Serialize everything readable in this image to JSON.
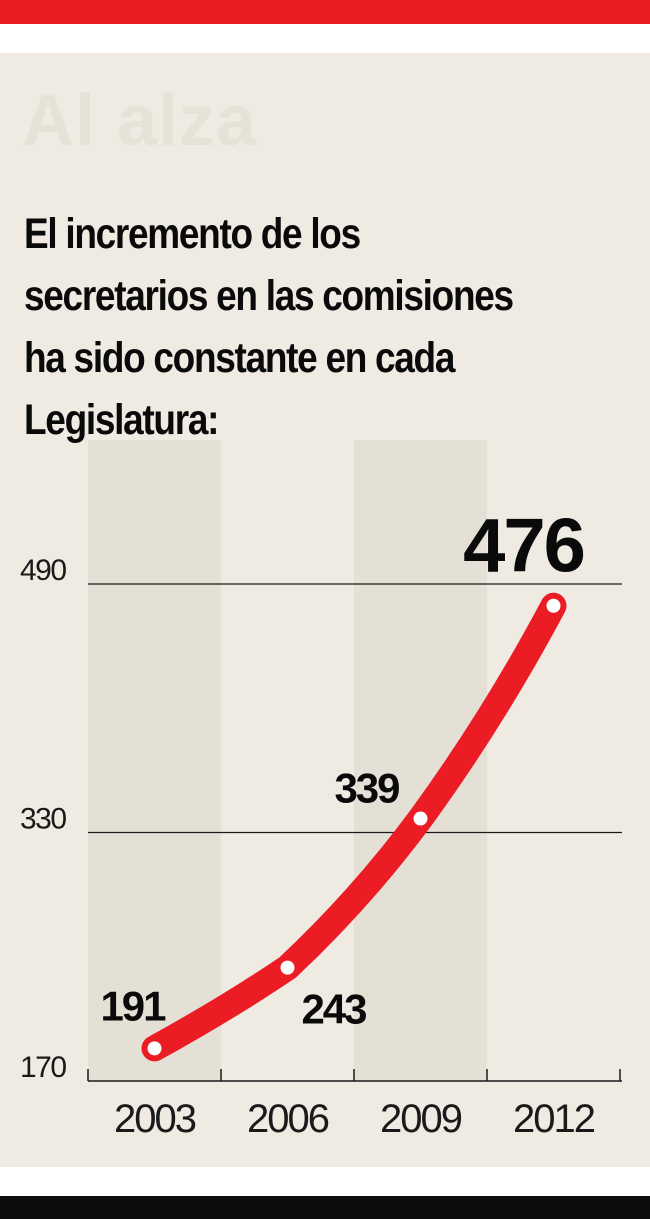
{
  "header": {
    "kicker": "Al alza",
    "title_lines": [
      "El incremento de los",
      "secretarios en las comisiones",
      "ha sido constante en cada",
      "Legislatura:"
    ]
  },
  "colors": {
    "accent": "#ec1c24",
    "bottom_bar": "#0d0d0d",
    "panel": "#efebe3",
    "column_stripe": "#e5e0d6"
  },
  "chart_data": {
    "type": "line",
    "title": "",
    "xlabel": "",
    "ylabel": "",
    "categories": [
      "2003",
      "2006",
      "2009",
      "2012"
    ],
    "series": [
      {
        "values": [
          191,
          243,
          339,
          476
        ]
      }
    ],
    "data_labels": [
      "191",
      "243",
      "339",
      "476"
    ],
    "yticks": [
      170,
      330,
      490
    ],
    "ylim": [
      170,
      490
    ],
    "grid": true,
    "legend": "none"
  }
}
